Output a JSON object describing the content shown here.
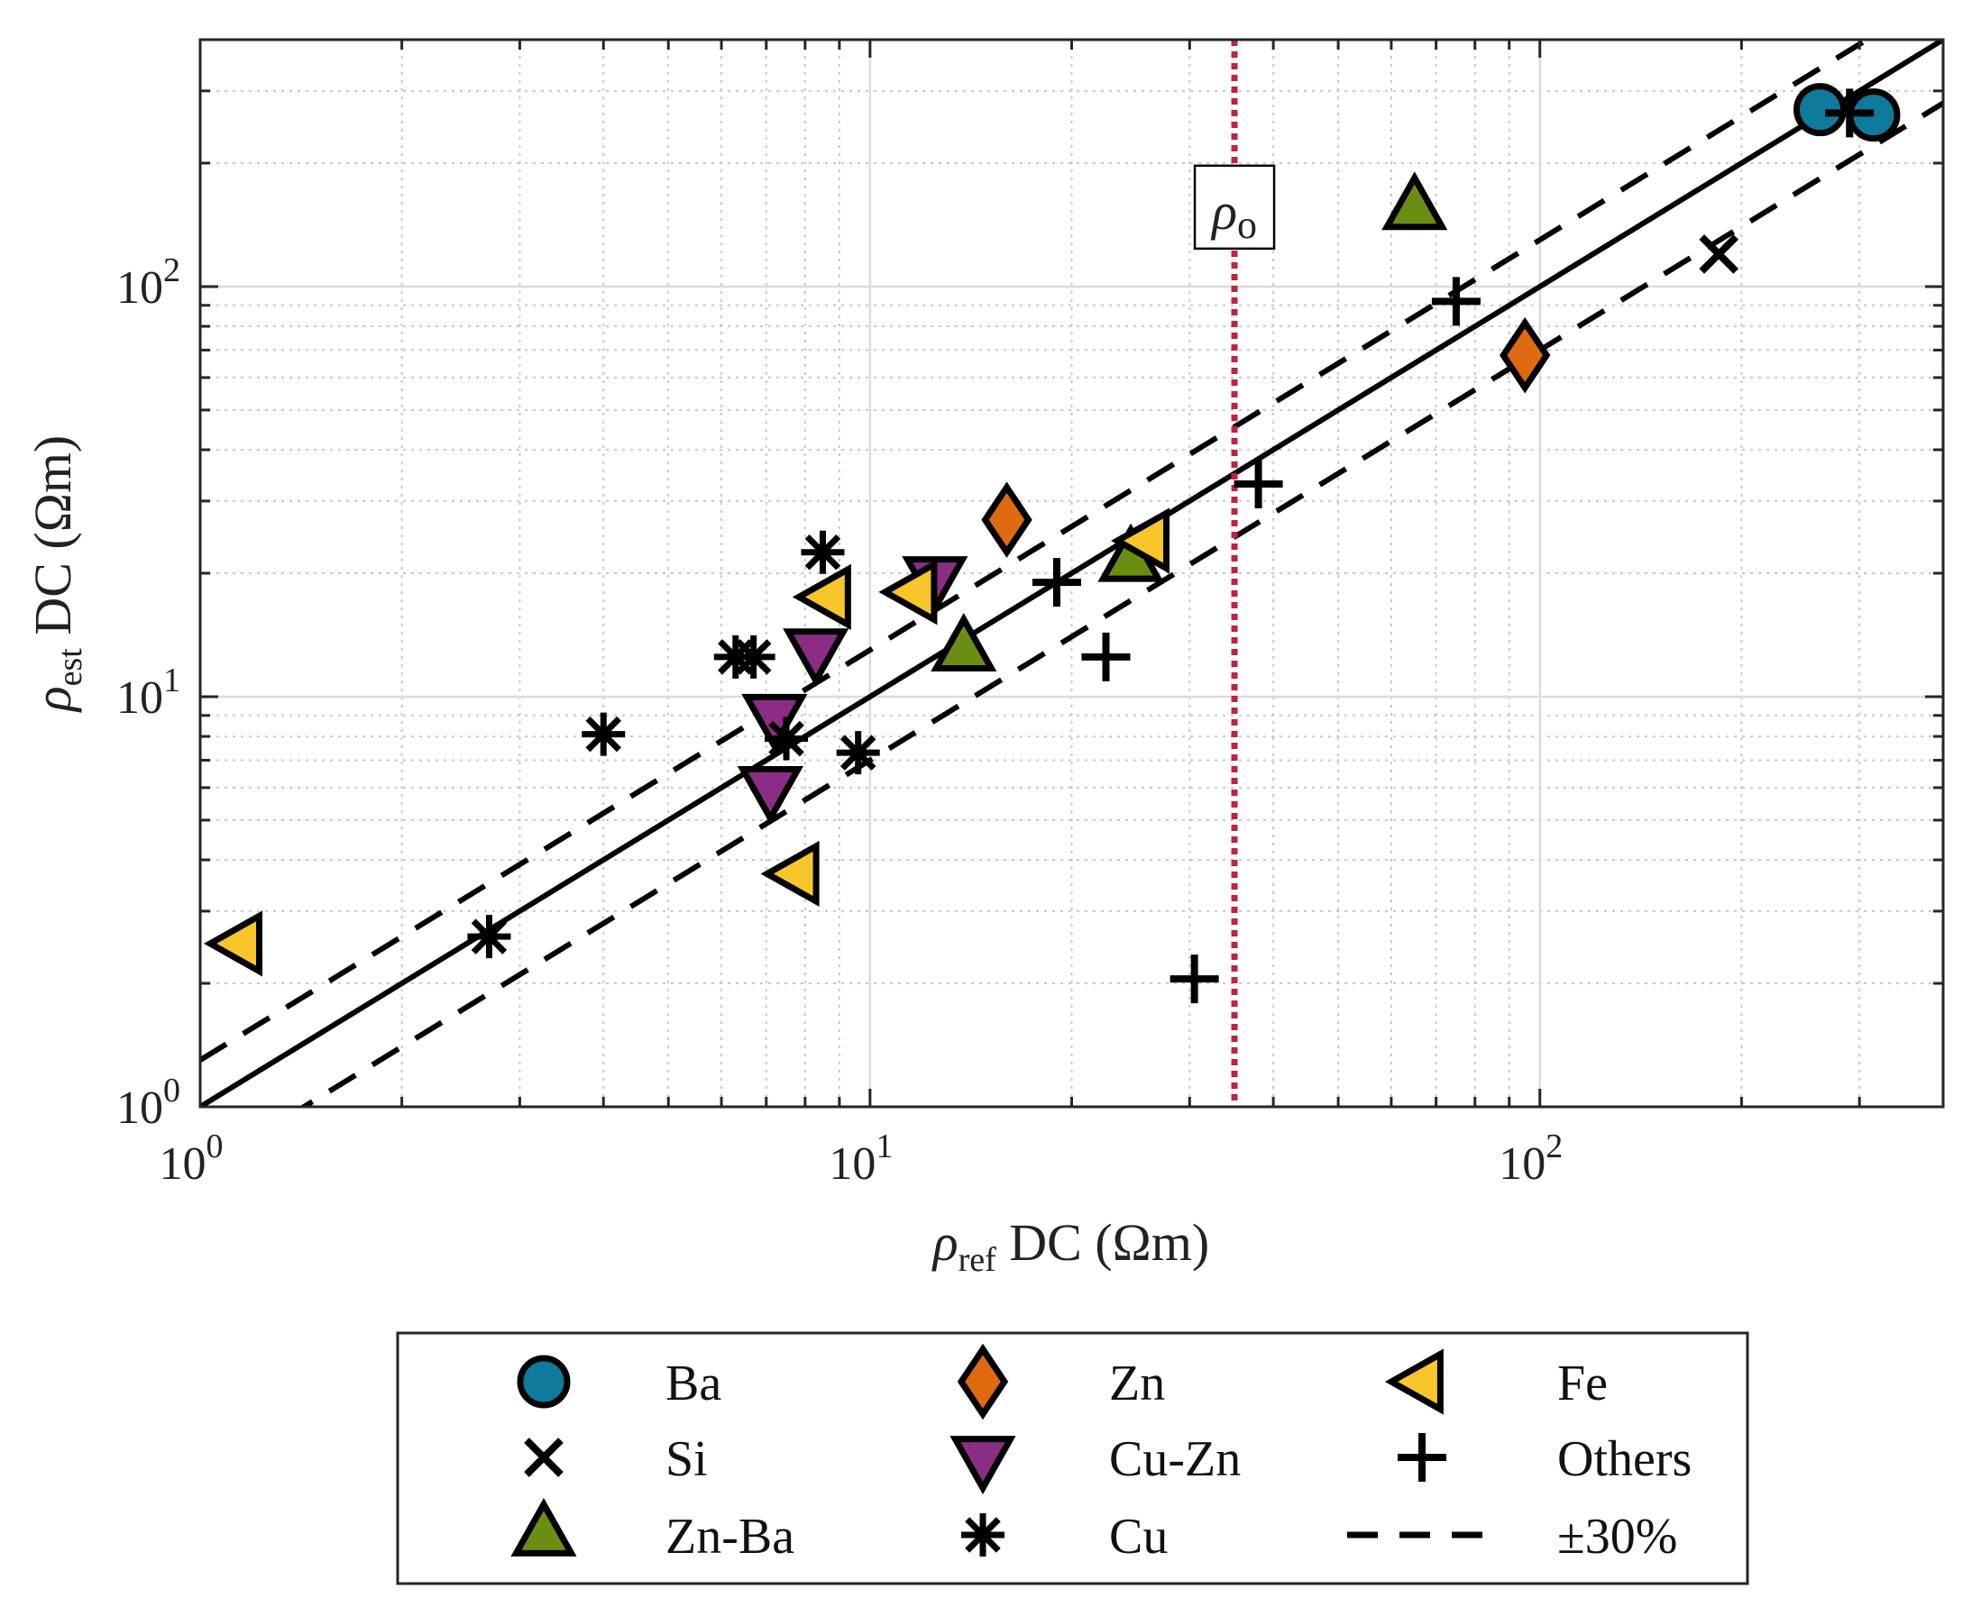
{
  "chart_data": {
    "type": "scatter",
    "title": "",
    "xscale": "log",
    "yscale": "log",
    "xlim": [
      1,
      400
    ],
    "ylim": [
      1,
      400
    ],
    "xlabel": {
      "symbol": "ρ",
      "sub": "ref",
      "text": " DC (Ωm)"
    },
    "ylabel": {
      "symbol": "ρ",
      "sub": "est",
      "text": " DC (Ωm)"
    },
    "xticks": [
      {
        "value": 1,
        "base": "10",
        "exp": "0"
      },
      {
        "value": 10,
        "base": "10",
        "exp": "1"
      },
      {
        "value": 100,
        "base": "10",
        "exp": "2"
      }
    ],
    "yticks": [
      {
        "value": 1,
        "base": "10",
        "exp": "0"
      },
      {
        "value": 10,
        "base": "10",
        "exp": "1"
      },
      {
        "value": 100,
        "base": "10",
        "exp": "2"
      }
    ],
    "grid": true,
    "reference_line": {
      "name": "identity",
      "style": "solid"
    },
    "band_line": {
      "name": "±30%",
      "factor": 0.3,
      "style": "dashed"
    },
    "threshold": {
      "x": 35,
      "label_symbol": "ρ",
      "label_sub": "o",
      "color": "#c0233f",
      "style": "dotted"
    },
    "colors": {
      "Ba": "#0e7a9c",
      "Zn": "#e06a10",
      "Fe": "#f8c52a",
      "Cu-Zn": "#8c2d85",
      "Zn-Ba": "#6b8e12"
    },
    "series": [
      {
        "name": "Ba",
        "marker": "circle",
        "color": "#0e7a9c",
        "points": [
          [
            262,
            270
          ],
          [
            315,
            262
          ]
        ]
      },
      {
        "name": "Si",
        "marker": "x",
        "color": "#000000",
        "points": [
          [
            185,
            120
          ]
        ]
      },
      {
        "name": "Zn-Ba",
        "marker": "triangle-up",
        "color": "#6b8e12",
        "points": [
          [
            65,
            155
          ],
          [
            13.8,
            13
          ],
          [
            24.5,
            21.5
          ]
        ]
      },
      {
        "name": "Zn",
        "marker": "diamond",
        "color": "#e06a10",
        "points": [
          [
            16,
            27
          ],
          [
            95,
            68
          ]
        ]
      },
      {
        "name": "Cu-Zn",
        "marker": "triangle-down",
        "color": "#8c2d85",
        "points": [
          [
            12.5,
            19.5
          ],
          [
            8.3,
            13
          ],
          [
            7.2,
            9
          ],
          [
            7.1,
            6
          ]
        ]
      },
      {
        "name": "Cu",
        "marker": "asterisk",
        "color": "#000000",
        "points": [
          [
            2.7,
            2.6
          ],
          [
            4.0,
            8.1
          ],
          [
            6.3,
            12.5
          ],
          [
            6.7,
            12.5
          ],
          [
            7.5,
            7.9
          ],
          [
            8.5,
            22.5
          ],
          [
            9.6,
            7.3
          ]
        ]
      },
      {
        "name": "Fe",
        "marker": "triangle-left",
        "color": "#f8c52a",
        "points": [
          [
            1.15,
            2.5
          ],
          [
            7.8,
            3.7
          ],
          [
            8.7,
            17.5
          ],
          [
            11.7,
            18
          ],
          [
            26,
            24
          ]
        ]
      },
      {
        "name": "Others",
        "marker": "plus",
        "color": "#000000",
        "points": [
          [
            290,
            265
          ],
          [
            75,
            92
          ],
          [
            38,
            33
          ],
          [
            19,
            19
          ],
          [
            22.5,
            12.5
          ],
          [
            30.5,
            2.05
          ]
        ]
      }
    ],
    "legend": {
      "position": "bottom",
      "entries": [
        "Ba",
        "Zn",
        "Fe",
        "Si",
        "Cu-Zn",
        "Others",
        "Zn-Ba",
        "Cu",
        "±30%"
      ]
    }
  }
}
